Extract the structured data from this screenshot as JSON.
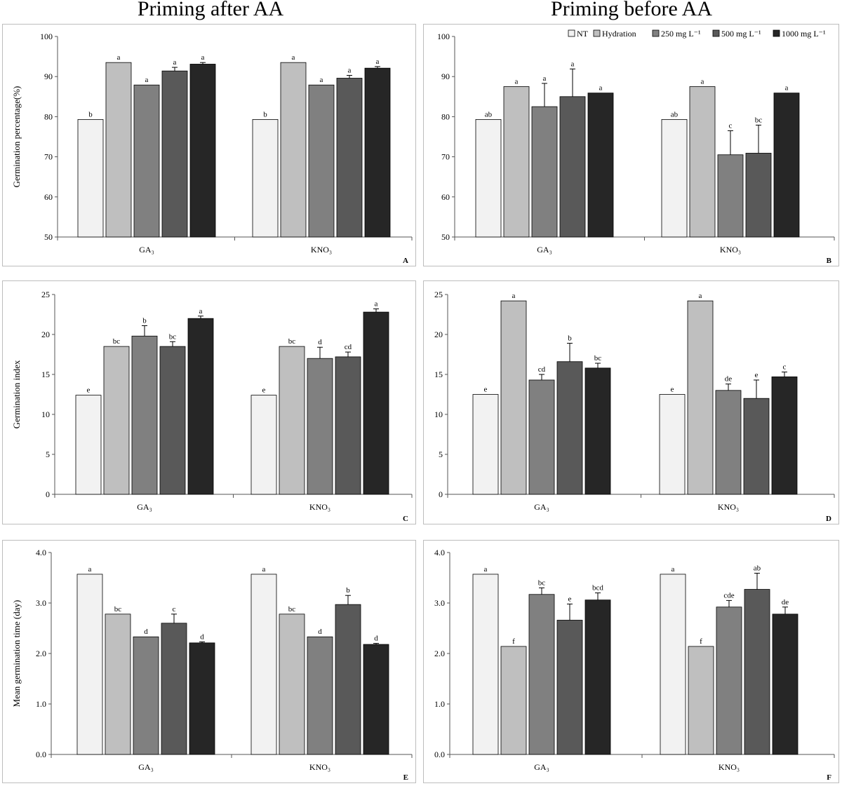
{
  "column_titles": [
    "Priming after AA",
    "Priming before AA"
  ],
  "legend": {
    "items": [
      "NT",
      "Hydration",
      "250 mg L⁻¹",
      "500 mg L⁻¹",
      "1000 mg L⁻¹"
    ],
    "colors": [
      "#f2f2f2",
      "#bfbfbf",
      "#808080",
      "#595959",
      "#262626"
    ]
  },
  "chart_data": [
    {
      "id": "A",
      "type": "bar",
      "column": "Priming after AA",
      "ylabel": "Germination  percentage(%)",
      "ylim": [
        50,
        100
      ],
      "yticks": [
        "50",
        "60",
        "70",
        "80",
        "90",
        "100"
      ],
      "categories": [
        "GA₃",
        "KNO₃"
      ],
      "series": [
        {
          "name": "NT",
          "values": [
            79.3,
            79.3
          ],
          "errors": [
            0,
            0
          ],
          "letters": [
            "b",
            "b"
          ]
        },
        {
          "name": "Hydration",
          "values": [
            93.5,
            93.5
          ],
          "errors": [
            0,
            0
          ],
          "letters": [
            "a",
            "a"
          ]
        },
        {
          "name": "250 mg L⁻¹",
          "values": [
            87.9,
            87.9
          ],
          "errors": [
            0,
            0
          ],
          "letters": [
            "a",
            "a"
          ]
        },
        {
          "name": "500 mg L⁻¹",
          "values": [
            91.4,
            89.6
          ],
          "errors": [
            0.9,
            0.7
          ],
          "letters": [
            "a",
            "a"
          ]
        },
        {
          "name": "1000 mg L⁻¹",
          "values": [
            93.1,
            92.1
          ],
          "errors": [
            0.4,
            0.4
          ],
          "letters": [
            "a",
            "a"
          ]
        }
      ]
    },
    {
      "id": "B",
      "type": "bar",
      "column": "Priming before AA",
      "ylabel": "",
      "ylim": [
        50,
        100
      ],
      "yticks": [
        "50",
        "60",
        "70",
        "80",
        "90",
        "100"
      ],
      "categories": [
        "GA₃",
        "KNO₃"
      ],
      "series": [
        {
          "name": "NT",
          "values": [
            79.3,
            79.3
          ],
          "errors": [
            0,
            0
          ],
          "letters": [
            "ab",
            "ab"
          ]
        },
        {
          "name": "Hydration",
          "values": [
            87.5,
            87.5
          ],
          "errors": [
            0,
            0
          ],
          "letters": [
            "a",
            "a"
          ]
        },
        {
          "name": "250 mg L⁻¹",
          "values": [
            82.5,
            70.5
          ],
          "errors": [
            5.8,
            6.0
          ],
          "letters": [
            "a",
            "c"
          ]
        },
        {
          "name": "500 mg L⁻¹",
          "values": [
            85.0,
            70.9
          ],
          "errors": [
            6.9,
            7.0
          ],
          "letters": [
            "a",
            "bc"
          ]
        },
        {
          "name": "1000 mg L⁻¹",
          "values": [
            85.9,
            85.9
          ],
          "errors": [
            0,
            0
          ],
          "letters": [
            "a",
            "a"
          ]
        }
      ]
    },
    {
      "id": "C",
      "type": "bar",
      "column": "Priming after AA",
      "ylabel": "Germination  index",
      "ylim": [
        0,
        25
      ],
      "yticks": [
        "0",
        "5",
        "10",
        "15",
        "20",
        "25"
      ],
      "categories": [
        "GA₃",
        "KNO₃"
      ],
      "series": [
        {
          "name": "NT",
          "values": [
            12.4,
            12.4
          ],
          "errors": [
            0,
            0
          ],
          "letters": [
            "e",
            "e"
          ]
        },
        {
          "name": "Hydration",
          "values": [
            18.5,
            18.5
          ],
          "errors": [
            0,
            0
          ],
          "letters": [
            "bc",
            "bc"
          ]
        },
        {
          "name": "250 mg L⁻¹",
          "values": [
            19.8,
            17.0
          ],
          "errors": [
            1.3,
            1.4
          ],
          "letters": [
            "b",
            "d"
          ]
        },
        {
          "name": "500 mg L⁻¹",
          "values": [
            18.5,
            17.2
          ],
          "errors": [
            0.6,
            0.6
          ],
          "letters": [
            "bc",
            "cd"
          ]
        },
        {
          "name": "1000 mg L⁻¹",
          "values": [
            22.0,
            22.8
          ],
          "errors": [
            0.3,
            0.4
          ],
          "letters": [
            "a",
            "a"
          ]
        }
      ]
    },
    {
      "id": "D",
      "type": "bar",
      "column": "Priming before AA",
      "ylabel": "",
      "ylim": [
        0,
        25
      ],
      "yticks": [
        "0",
        "5",
        "10",
        "15",
        "20",
        "25"
      ],
      "categories": [
        "GA₃",
        "KNO₃"
      ],
      "series": [
        {
          "name": "NT",
          "values": [
            12.5,
            12.5
          ],
          "errors": [
            0,
            0
          ],
          "letters": [
            "e",
            "e"
          ]
        },
        {
          "name": "Hydration",
          "values": [
            24.2,
            24.2
          ],
          "errors": [
            0,
            0
          ],
          "letters": [
            "a",
            "a"
          ]
        },
        {
          "name": "250 mg L⁻¹",
          "values": [
            14.3,
            13.0
          ],
          "errors": [
            0.7,
            0.8
          ],
          "letters": [
            "cd",
            "de"
          ]
        },
        {
          "name": "500 mg L⁻¹",
          "values": [
            16.6,
            12.0
          ],
          "errors": [
            2.3,
            2.3
          ],
          "letters": [
            "b",
            "e"
          ]
        },
        {
          "name": "1000 mg L⁻¹",
          "values": [
            15.8,
            14.7
          ],
          "errors": [
            0.6,
            0.6
          ],
          "letters": [
            "bc",
            "c"
          ]
        }
      ]
    },
    {
      "id": "E",
      "type": "bar",
      "column": "Priming after AA",
      "ylabel": "Mean germination time  (day)",
      "ylim": [
        0,
        4
      ],
      "yticks": [
        "0.0",
        "1.0",
        "2.0",
        "3.0",
        "4.0"
      ],
      "categories": [
        "GA₃",
        "KNO₃"
      ],
      "series": [
        {
          "name": "NT",
          "values": [
            3.57,
            3.57
          ],
          "errors": [
            0,
            0
          ],
          "letters": [
            "a",
            "a"
          ]
        },
        {
          "name": "Hydration",
          "values": [
            2.78,
            2.78
          ],
          "errors": [
            0,
            0
          ],
          "letters": [
            "bc",
            "bc"
          ]
        },
        {
          "name": "250 mg L⁻¹",
          "values": [
            2.33,
            2.33
          ],
          "errors": [
            0,
            0
          ],
          "letters": [
            "d",
            "d"
          ]
        },
        {
          "name": "500 mg L⁻¹",
          "values": [
            2.6,
            2.97
          ],
          "errors": [
            0.18,
            0.18
          ],
          "letters": [
            "c",
            "b"
          ]
        },
        {
          "name": "1000 mg L⁻¹",
          "values": [
            2.21,
            2.18
          ],
          "errors": [
            0.02,
            0.02
          ],
          "letters": [
            "d",
            "d"
          ]
        }
      ]
    },
    {
      "id": "F",
      "type": "bar",
      "column": "Priming before AA",
      "ylabel": "",
      "ylim": [
        0,
        4
      ],
      "yticks": [
        "0.0",
        "1.0",
        "2.0",
        "3.0",
        "4.0"
      ],
      "categories": [
        "GA₃",
        "KNO₃"
      ],
      "series": [
        {
          "name": "NT",
          "values": [
            3.57,
            3.57
          ],
          "errors": [
            0,
            0
          ],
          "letters": [
            "a",
            "a"
          ]
        },
        {
          "name": "Hydration",
          "values": [
            2.14,
            2.14
          ],
          "errors": [
            0,
            0
          ],
          "letters": [
            "f",
            "f"
          ]
        },
        {
          "name": "250 mg L⁻¹",
          "values": [
            3.17,
            2.92
          ],
          "errors": [
            0.13,
            0.13
          ],
          "letters": [
            "bc",
            "cde"
          ]
        },
        {
          "name": "500 mg L⁻¹",
          "values": [
            2.66,
            3.27
          ],
          "errors": [
            0.32,
            0.32
          ],
          "letters": [
            "e",
            "ab"
          ]
        },
        {
          "name": "1000 mg L⁻¹",
          "values": [
            3.06,
            2.78
          ],
          "errors": [
            0.14,
            0.14
          ],
          "letters": [
            "bcd",
            "de"
          ]
        }
      ]
    }
  ]
}
